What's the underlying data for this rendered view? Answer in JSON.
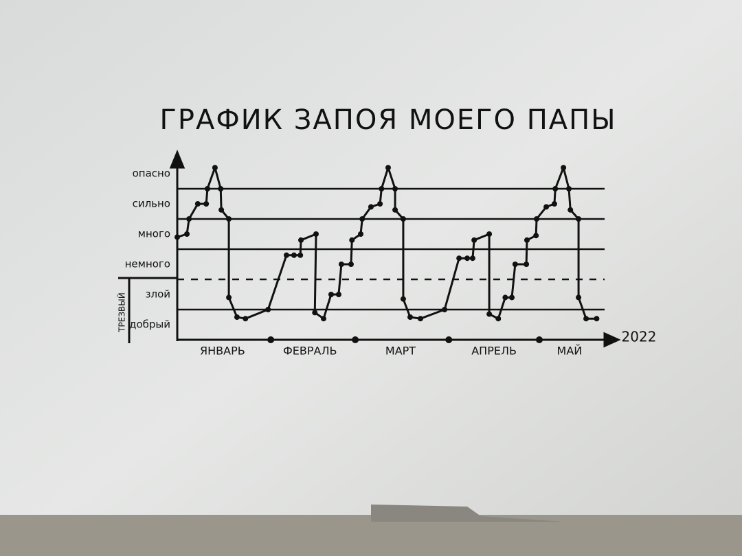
{
  "chart_data": {
    "type": "line",
    "title": "ГРАФИК ЗАПОЯ МОЕГО ПАПЫ",
    "x_label": "2022",
    "annotation": "ТРЕЗВЫЙ",
    "color": "#111111",
    "xlim": [
      0,
      143
    ],
    "xticks": [
      {
        "value": 15,
        "label": "ЯНВАРЬ"
      },
      {
        "value": 44,
        "label": "ФЕВРАЛЬ"
      },
      {
        "value": 74,
        "label": "МАРТ"
      },
      {
        "value": 105,
        "label": "АПРЕЛЬ"
      },
      {
        "value": 130,
        "label": "МАЙ"
      }
    ],
    "month_boundaries": [
      31,
      59,
      90,
      120
    ],
    "ylim": [
      0,
      6
    ],
    "yticks": [
      {
        "value": 0.5,
        "label": "добрый"
      },
      {
        "value": 1.5,
        "label": "злой"
      },
      {
        "value": 2.5,
        "label": "немного"
      },
      {
        "value": 3.5,
        "label": "много"
      },
      {
        "value": 4.5,
        "label": "сильно"
      },
      {
        "value": 5.5,
        "label": "опасно"
      }
    ],
    "grid_lines": [
      1,
      3,
      4,
      5
    ],
    "dashed_grid_lines": [
      2
    ],
    "x": [
      0,
      3.2,
      3.9,
      6.8,
      9.6,
      10,
      12.5,
      14.4,
      14.6,
      17.1,
      17.1,
      19.8,
      22.6,
      30.1,
      36.2,
      38.7,
      40.8,
      41,
      46,
      45.6,
      48.5,
      51,
      53.5,
      54.4,
      57.6,
      57.9,
      60.8,
      61.3,
      64.2,
      67.2,
      67.7,
      69.9,
      72.2,
      72.2,
      74.9,
      74.9,
      77.2,
      80.6,
      88.6,
      93.4,
      96.1,
      97.9,
      98.4,
      103.4,
      103.4,
      106.4,
      108.7,
      110.9,
      112,
      115.7,
      115.9,
      118.9,
      119.1,
      122.3,
      125,
      125.3,
      128,
      129.8,
      130.3,
      133,
      133,
      135.5,
      139
    ],
    "values": [
      3.4,
      3.5,
      4.0,
      4.5,
      4.5,
      5.0,
      5.7,
      5.0,
      4.3,
      4.0,
      1.4,
      0.75,
      0.7,
      1.0,
      2.8,
      2.8,
      2.8,
      3.3,
      3.5,
      0.9,
      0.7,
      1.5,
      1.5,
      2.5,
      2.5,
      3.3,
      3.5,
      4.0,
      4.4,
      4.5,
      5.0,
      5.7,
      5.0,
      4.3,
      4.0,
      1.35,
      0.75,
      0.7,
      1.0,
      2.7,
      2.7,
      2.7,
      3.3,
      3.5,
      0.85,
      0.7,
      1.4,
      1.4,
      2.5,
      2.5,
      3.3,
      3.45,
      4.0,
      4.4,
      4.5,
      5.0,
      5.7,
      5.0,
      4.3,
      4.0,
      1.4,
      0.7,
      0.7
    ]
  }
}
